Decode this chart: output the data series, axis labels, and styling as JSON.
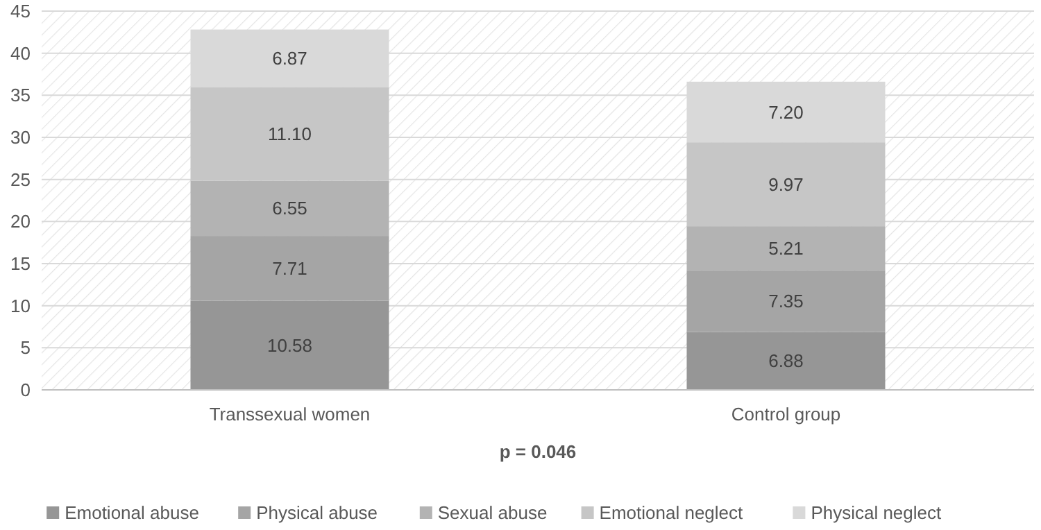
{
  "chart_data": {
    "type": "bar",
    "stacked": true,
    "categories": [
      "Transsexual women",
      "Control group"
    ],
    "series": [
      {
        "name": "Emotional abuse",
        "color": "#969696",
        "values": [
          10.58,
          6.88
        ],
        "value_labels": [
          "10.58",
          "6.88"
        ]
      },
      {
        "name": "Physical abuse",
        "color": "#a5a5a5",
        "values": [
          7.71,
          7.35
        ],
        "value_labels": [
          "7.71",
          "7.35"
        ]
      },
      {
        "name": "Sexual abuse",
        "color": "#b3b3b3",
        "values": [
          6.55,
          5.21
        ],
        "value_labels": [
          "6.55",
          "5.21"
        ]
      },
      {
        "name": "Emotional neglect",
        "color": "#c6c6c6",
        "values": [
          11.1,
          9.97
        ],
        "value_labels": [
          "11.10",
          "9.97"
        ]
      },
      {
        "name": "Physical neglect",
        "color": "#d9d9d9",
        "values": [
          6.87,
          7.2
        ],
        "value_labels": [
          "6.87",
          "7.20"
        ]
      }
    ],
    "ylim": [
      0,
      45
    ],
    "yticks": [
      0,
      5,
      10,
      15,
      20,
      25,
      30,
      35,
      40,
      45
    ],
    "grid": "y",
    "legend": "bottom",
    "annotations": [
      "p = 0.046"
    ]
  }
}
